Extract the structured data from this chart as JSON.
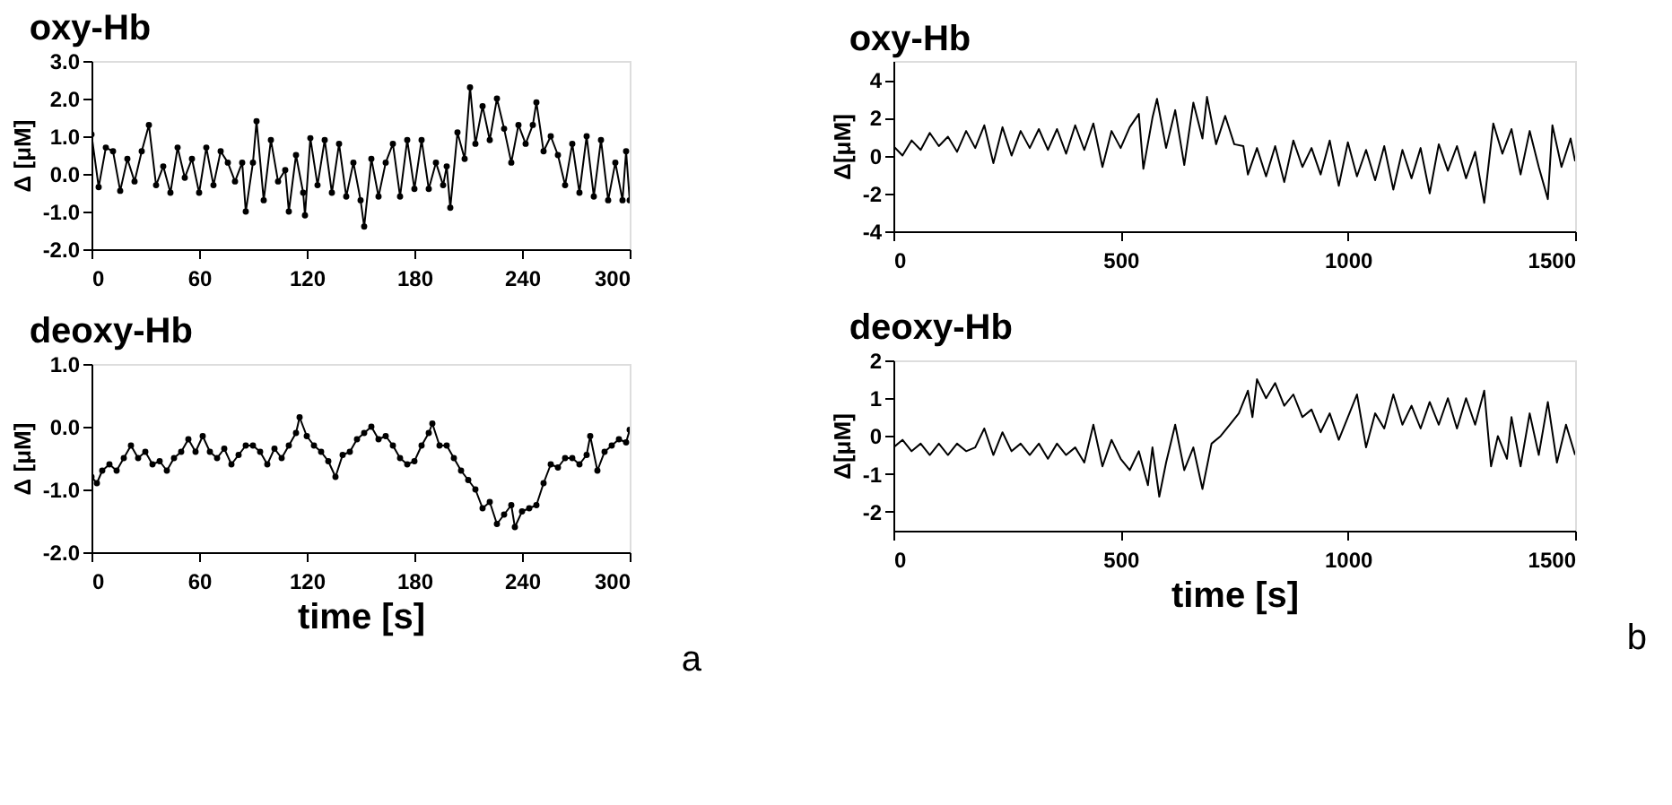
{
  "chart_data": [
    {
      "type": "line",
      "title": "oxy-Hb",
      "ylabel": "Δ [μM]",
      "marker": "circle",
      "grid": false,
      "xlim": [
        0,
        300
      ],
      "xticks": [
        0,
        60,
        120,
        180,
        240,
        300
      ],
      "ylim": [
        -2,
        3
      ],
      "yticks": [
        {
          "value": -2,
          "label": "-2.0"
        },
        {
          "value": -1,
          "label": "-1.0"
        },
        {
          "value": 0,
          "label": "0.0"
        },
        {
          "value": 1,
          "label": "1.0"
        },
        {
          "value": 2,
          "label": "2.0"
        },
        {
          "value": 3,
          "label": "3.0"
        }
      ],
      "x": [
        0,
        4,
        8,
        12,
        16,
        20,
        24,
        28,
        32,
        36,
        40,
        44,
        48,
        52,
        56,
        60,
        64,
        68,
        72,
        76,
        80,
        84,
        86,
        90,
        92,
        96,
        100,
        104,
        108,
        110,
        114,
        118,
        119,
        122,
        126,
        130,
        134,
        138,
        142,
        146,
        150,
        152,
        156,
        160,
        164,
        168,
        172,
        176,
        180,
        184,
        188,
        192,
        196,
        198,
        200,
        204,
        208,
        211,
        214,
        218,
        222,
        226,
        230,
        234,
        238,
        242,
        246,
        248,
        252,
        256,
        260,
        264,
        268,
        272,
        276,
        280,
        284,
        288,
        292,
        296,
        298,
        300
      ],
      "series": [
        {
          "color": "#000000",
          "values": [
            1.05,
            -0.35,
            0.7,
            0.6,
            -0.45,
            0.4,
            -0.2,
            0.6,
            1.3,
            -0.3,
            0.2,
            -0.5,
            0.7,
            -0.1,
            0.4,
            -0.5,
            0.7,
            -0.3,
            0.6,
            0.3,
            -0.2,
            0.3,
            -1.0,
            0.3,
            1.4,
            -0.7,
            0.9,
            -0.2,
            0.1,
            -1.0,
            0.5,
            -0.5,
            -1.1,
            0.95,
            -0.3,
            0.9,
            -0.5,
            0.8,
            -0.6,
            0.3,
            -0.7,
            -1.4,
            0.4,
            -0.6,
            0.3,
            0.8,
            -0.6,
            0.9,
            -0.4,
            0.9,
            -0.4,
            0.3,
            -0.3,
            0.2,
            -0.9,
            1.1,
            0.4,
            2.3,
            0.8,
            1.8,
            0.9,
            2.0,
            1.2,
            0.3,
            1.3,
            0.8,
            1.3,
            1.9,
            0.6,
            1.0,
            0.5,
            -0.3,
            0.8,
            -0.5,
            1.0,
            -0.6,
            0.9,
            -0.7,
            0.3,
            -0.7,
            0.6,
            -0.7
          ]
        }
      ]
    },
    {
      "type": "line",
      "title": "oxy-Hb",
      "ylabel": "Δ[μM]",
      "marker": "none",
      "grid": false,
      "xlim": [
        0,
        1500
      ],
      "xticks": [
        0,
        500,
        1000,
        1500
      ],
      "ylim": [
        -4,
        5
      ],
      "yticks": [
        -4,
        -2,
        0,
        2,
        4
      ],
      "x": [
        0,
        20,
        40,
        60,
        80,
        100,
        120,
        140,
        160,
        180,
        200,
        220,
        240,
        260,
        280,
        300,
        320,
        340,
        360,
        380,
        400,
        420,
        440,
        460,
        480,
        500,
        520,
        540,
        550,
        570,
        580,
        600,
        620,
        640,
        660,
        680,
        690,
        710,
        730,
        750,
        770,
        780,
        800,
        820,
        840,
        860,
        880,
        900,
        920,
        940,
        960,
        980,
        1000,
        1020,
        1040,
        1060,
        1080,
        1100,
        1120,
        1140,
        1160,
        1180,
        1200,
        1220,
        1240,
        1260,
        1280,
        1300,
        1320,
        1340,
        1360,
        1380,
        1400,
        1420,
        1440,
        1450,
        1470,
        1490,
        1500
      ],
      "series": [
        {
          "color": "#000000",
          "values": [
            0.5,
            0.0,
            0.8,
            0.3,
            1.2,
            0.5,
            1.0,
            0.2,
            1.3,
            0.4,
            1.6,
            -0.4,
            1.5,
            0.0,
            1.3,
            0.4,
            1.4,
            0.3,
            1.4,
            0.1,
            1.6,
            0.3,
            1.7,
            -0.6,
            1.3,
            0.4,
            1.5,
            2.2,
            -0.7,
            2.0,
            3.0,
            0.4,
            2.4,
            -0.5,
            2.8,
            0.9,
            3.1,
            0.6,
            2.1,
            0.6,
            0.5,
            -1.0,
            0.4,
            -1.1,
            0.5,
            -1.4,
            0.8,
            -0.6,
            0.4,
            -1.0,
            0.8,
            -1.6,
            0.7,
            -1.1,
            0.3,
            -1.3,
            0.5,
            -1.8,
            0.3,
            -1.2,
            0.4,
            -2.0,
            0.6,
            -0.8,
            0.5,
            -1.2,
            0.2,
            -2.5,
            1.7,
            0.1,
            1.4,
            -1.0,
            1.3,
            -0.6,
            -2.3,
            1.6,
            -0.6,
            0.9,
            -0.3
          ]
        }
      ]
    },
    {
      "type": "line",
      "title": "deoxy-Hb",
      "xlabel": "time [s]",
      "ylabel": "Δ [μM]",
      "marker": "circle",
      "grid": false,
      "annotations": [
        "a"
      ],
      "xlim": [
        0,
        300
      ],
      "xticks": [
        0,
        60,
        120,
        180,
        240,
        300
      ],
      "ylim": [
        -2,
        1
      ],
      "yticks": [
        {
          "value": -2,
          "label": "-2.0"
        },
        {
          "value": -1,
          "label": "-1.0"
        },
        {
          "value": 0,
          "label": "0.0"
        },
        {
          "value": 1,
          "label": "1.0"
        }
      ],
      "x": [
        0,
        3,
        6,
        10,
        14,
        18,
        22,
        26,
        30,
        34,
        38,
        42,
        46,
        50,
        54,
        58,
        62,
        66,
        70,
        74,
        78,
        82,
        86,
        90,
        94,
        98,
        102,
        106,
        110,
        114,
        116,
        120,
        124,
        128,
        132,
        136,
        140,
        144,
        148,
        152,
        156,
        160,
        164,
        168,
        172,
        176,
        180,
        184,
        188,
        190,
        194,
        198,
        202,
        206,
        210,
        214,
        218,
        222,
        226,
        230,
        234,
        236,
        240,
        244,
        248,
        252,
        256,
        260,
        264,
        268,
        272,
        276,
        278,
        282,
        286,
        290,
        294,
        298,
        300
      ],
      "series": [
        {
          "color": "#000000",
          "values": [
            -0.8,
            -0.9,
            -0.7,
            -0.6,
            -0.7,
            -0.5,
            -0.3,
            -0.5,
            -0.4,
            -0.6,
            -0.55,
            -0.7,
            -0.5,
            -0.4,
            -0.2,
            -0.4,
            -0.15,
            -0.4,
            -0.5,
            -0.35,
            -0.6,
            -0.45,
            -0.3,
            -0.3,
            -0.4,
            -0.6,
            -0.35,
            -0.5,
            -0.3,
            -0.1,
            0.15,
            -0.15,
            -0.3,
            -0.4,
            -0.55,
            -0.8,
            -0.45,
            -0.4,
            -0.2,
            -0.1,
            0.0,
            -0.2,
            -0.15,
            -0.3,
            -0.5,
            -0.6,
            -0.55,
            -0.3,
            -0.1,
            0.05,
            -0.3,
            -0.3,
            -0.5,
            -0.7,
            -0.85,
            -1.0,
            -1.3,
            -1.2,
            -1.55,
            -1.4,
            -1.25,
            -1.6,
            -1.35,
            -1.3,
            -1.25,
            -0.9,
            -0.6,
            -0.65,
            -0.5,
            -0.5,
            -0.6,
            -0.45,
            -0.15,
            -0.7,
            -0.4,
            -0.3,
            -0.2,
            -0.25,
            -0.05
          ]
        }
      ]
    },
    {
      "type": "line",
      "title": "deoxy-Hb",
      "xlabel": "time [s]",
      "ylabel": "Δ[μM]",
      "marker": "none",
      "grid": false,
      "annotations": [
        "b"
      ],
      "xlim": [
        0,
        1500
      ],
      "xticks": [
        0,
        500,
        1000,
        1500
      ],
      "ylim": [
        -2.5,
        2
      ],
      "yticks": [
        -2,
        -1,
        0,
        1,
        2
      ],
      "x": [
        0,
        20,
        40,
        60,
        80,
        100,
        120,
        140,
        160,
        180,
        200,
        220,
        240,
        260,
        280,
        300,
        320,
        340,
        360,
        380,
        400,
        420,
        440,
        460,
        480,
        500,
        520,
        540,
        560,
        570,
        585,
        600,
        620,
        640,
        660,
        680,
        700,
        720,
        740,
        760,
        780,
        790,
        800,
        820,
        840,
        860,
        880,
        900,
        920,
        940,
        960,
        980,
        1000,
        1020,
        1040,
        1060,
        1080,
        1100,
        1120,
        1140,
        1160,
        1180,
        1200,
        1220,
        1240,
        1260,
        1280,
        1300,
        1315,
        1330,
        1350,
        1360,
        1380,
        1400,
        1420,
        1440,
        1460,
        1480,
        1500
      ],
      "series": [
        {
          "color": "#000000",
          "values": [
            -0.3,
            -0.1,
            -0.4,
            -0.2,
            -0.5,
            -0.2,
            -0.5,
            -0.2,
            -0.4,
            -0.3,
            0.2,
            -0.5,
            0.1,
            -0.4,
            -0.2,
            -0.5,
            -0.2,
            -0.6,
            -0.2,
            -0.5,
            -0.3,
            -0.7,
            0.3,
            -0.8,
            -0.1,
            -0.6,
            -0.9,
            -0.4,
            -1.3,
            -0.3,
            -1.6,
            -0.7,
            0.3,
            -0.9,
            -0.3,
            -1.4,
            -0.2,
            0.0,
            0.3,
            0.6,
            1.2,
            0.5,
            1.5,
            1.0,
            1.4,
            0.8,
            1.1,
            0.5,
            0.7,
            0.1,
            0.6,
            -0.1,
            0.5,
            1.1,
            -0.3,
            0.6,
            0.2,
            1.1,
            0.3,
            0.8,
            0.2,
            0.9,
            0.3,
            1.0,
            0.2,
            1.0,
            0.3,
            1.2,
            -0.8,
            0.0,
            -0.6,
            0.5,
            -0.8,
            0.6,
            -0.5,
            0.9,
            -0.7,
            0.3,
            -0.5
          ]
        }
      ]
    }
  ]
}
